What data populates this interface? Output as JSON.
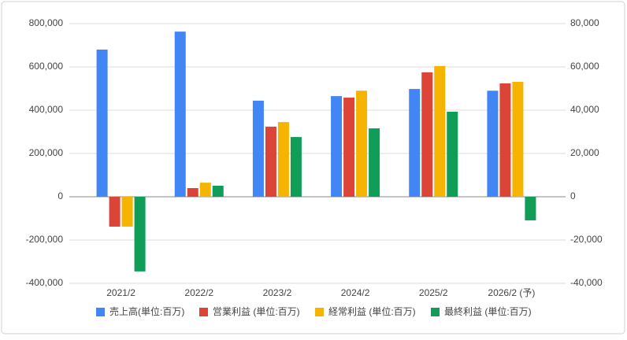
{
  "chart_data": {
    "type": "bar",
    "categories": [
      "2021/2",
      "2022/2",
      "2023/2",
      "2024/2",
      "2025/2",
      "2026/2 (予)"
    ],
    "series": [
      {
        "name": "売上高(単位:百万)",
        "color": "#4285f4",
        "values": [
          680000,
          763000,
          444000,
          465000,
          498000,
          490000
        ]
      },
      {
        "name": "営業利益 (単位:百万)",
        "color": "#db4437",
        "values": [
          -13800,
          4000,
          32400,
          45800,
          57500,
          52400
        ],
        "axis": "y2"
      },
      {
        "name": "経常利益 (単位:百万)",
        "color": "#f4b400",
        "values": [
          -13800,
          6500,
          34500,
          49000,
          60400,
          53100
        ],
        "axis": "y2"
      },
      {
        "name": "最終利益 (単位:百万)",
        "color": "#0f9d58",
        "values": [
          -34500,
          5100,
          27600,
          31600,
          39300,
          -10900
        ],
        "axis": "y2"
      }
    ],
    "ylim": [
      -400000,
      800000
    ],
    "yticks": [
      {
        "value": -400000,
        "label": "-400,000"
      },
      {
        "value": -200000,
        "label": "-200,000"
      },
      0,
      {
        "value": 200000,
        "label": "200,000"
      },
      {
        "value": 400000,
        "label": "400,000"
      },
      {
        "value": 600000,
        "label": "600,000"
      },
      {
        "value": 800000,
        "label": "800,000"
      }
    ],
    "y2lim": [
      -40000,
      80000
    ],
    "y2ticks": [
      {
        "value": -40000,
        "label": "-40,000"
      },
      {
        "value": -20000,
        "label": "-20,000"
      },
      0,
      {
        "value": 20000,
        "label": "20,000"
      },
      {
        "value": 40000,
        "label": "40,000"
      },
      {
        "value": 60000,
        "label": "60,000"
      },
      {
        "value": 80000,
        "label": "80,000"
      }
    ],
    "grid": true,
    "legend": "bottom"
  }
}
